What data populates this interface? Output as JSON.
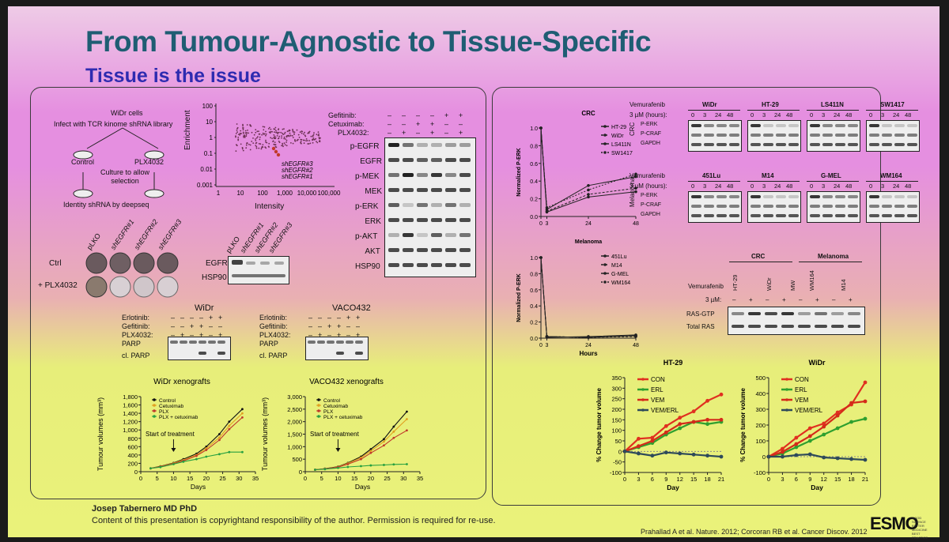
{
  "slide": {
    "title": "From Tumour-Agnostic to Tissue-Specific",
    "subtitle": "Tissue is the issue",
    "author": "Josep Tabernero MD PhD",
    "copyright": "Content of this presentation is copyrightand responsibility of the author. Permission is required for re-use.",
    "reference": "Prahallad A et al. Nature. 2012; Corcoran RB et al. Cancer Discov. 2012",
    "logo": "ESMO",
    "logo_tagline": "GOOD SCIENCE BETTER MEDICINE BEST PRACTICE"
  },
  "left": {
    "screen": {
      "cells": "WiDr cells",
      "infect": "Infect with TCR kinome shRNA library",
      "control": "Control",
      "plx": "PLX4032",
      "culture": "Culture to allow selection",
      "identify": "Identity shRNA by deepseq"
    },
    "scatter": {
      "ylabel": "Enrichment",
      "xlabel": "Intensity",
      "yticks": [
        "100",
        "10",
        "1",
        "0.1",
        "0.01",
        "0.001"
      ],
      "xticks": [
        "1",
        "10",
        "100",
        "1,000",
        "10,000",
        "100,000"
      ],
      "annotations": [
        "shEGFR#3",
        "shEGFR#2",
        "shEGFR#1"
      ]
    },
    "colony": {
      "cols": [
        "pLKO",
        "shEGFR#1",
        "shEGFR#2",
        "shEGFR#3"
      ],
      "rows": [
        "Ctrl",
        "+ PLX4032"
      ]
    },
    "egfr_blot": {
      "cols": [
        "pLKO",
        "shEGFR#1",
        "shEGFR#2",
        "shEGFR#3"
      ],
      "rows": [
        "EGFR",
        "HSP90"
      ]
    },
    "big_blot": {
      "conditions": [
        {
          "label": "Gefitinib:",
          "values": [
            "–",
            "–",
            "–",
            "–",
            "+",
            "+"
          ]
        },
        {
          "label": "Cetuximab:",
          "values": [
            "–",
            "–",
            "+",
            "+",
            "–",
            "–"
          ]
        },
        {
          "label": "PLX4032:",
          "values": [
            "–",
            "+",
            "–",
            "+",
            "–",
            "+"
          ]
        }
      ],
      "rows": [
        "p-EGFR",
        "EGFR",
        "p-MEK",
        "MEK",
        "p-ERK",
        "ERK",
        "p-AKT",
        "AKT",
        "HSP90"
      ]
    },
    "parp_widr": {
      "title": "WiDr",
      "conditions": [
        {
          "label": "Erlotinib:",
          "values": [
            "–",
            "–",
            "–",
            "–",
            "+",
            "+"
          ]
        },
        {
          "label": "Gefitinib:",
          "values": [
            "–",
            "–",
            "+",
            "+",
            "–",
            "–"
          ]
        },
        {
          "label": "PLX4032:",
          "values": [
            "–",
            "+",
            "–",
            "+",
            "–",
            "+"
          ]
        }
      ],
      "rows": [
        "PARP",
        "cl. PARP"
      ]
    },
    "parp_vaco": {
      "title": "VACO432",
      "conditions": [
        {
          "label": "Erlotinib:",
          "values": [
            "–",
            "–",
            "–",
            "–",
            "+",
            "+"
          ]
        },
        {
          "label": "Gefitinib:",
          "values": [
            "–",
            "–",
            "+",
            "+",
            "–",
            "–"
          ]
        },
        {
          "label": "PLX4032:",
          "values": [
            "–",
            "+",
            "–",
            "+",
            "–",
            "+"
          ]
        }
      ],
      "rows": [
        "PARP",
        "cl. PARP"
      ]
    },
    "start_treatment": "Start of treatment"
  },
  "right": {
    "crc_blot": {
      "drug": "Vemurafenib",
      "time_label": "3 µM (hours):",
      "times": [
        "0",
        "3",
        "24",
        "48"
      ],
      "lines": [
        "WiDr",
        "HT-29",
        "LS411N",
        "SW1417"
      ],
      "side": "CRC",
      "rows": [
        "P-ERK",
        "P-CRAF",
        "GAPDH"
      ]
    },
    "mel_blot": {
      "drug": "Vemurafenib",
      "time_label": "3 µM (hours):",
      "times": [
        "0",
        "3",
        "24",
        "48"
      ],
      "lines": [
        "451Lu",
        "M14",
        "G-MEL",
        "WM164"
      ],
      "side": "Melanoma",
      "rows": [
        "P-ERK",
        "P-CRAF",
        "GAPDH"
      ]
    },
    "ras_blot": {
      "groups": [
        "CRC",
        "Melanoma"
      ],
      "drug": "Vemurafenib",
      "cols": [
        "HT-29",
        "WiDr",
        "MW",
        "WM164",
        "M14"
      ],
      "dose_label": "3 µM:",
      "dose": [
        "–",
        "+",
        "–",
        "+",
        "–",
        "+",
        "–",
        "+"
      ],
      "rows": [
        "RAS-GTP",
        "Total RAS"
      ]
    }
  },
  "chart_data": [
    {
      "type": "line",
      "title": "WiDr xenografts",
      "xlabel": "Days",
      "ylabel": "Tumour volumes (mm³)",
      "xlim": [
        0,
        35
      ],
      "ylim": [
        0,
        1800
      ],
      "xticks": [
        0,
        5,
        10,
        15,
        20,
        25,
        30,
        35
      ],
      "yticks": [
        0,
        200,
        400,
        600,
        800,
        1000,
        1200,
        1400,
        1600,
        1800
      ],
      "ytick_labels": [
        "0",
        "200",
        "400",
        "600",
        "800",
        "1,000",
        "1,200",
        "1,400",
        "1,600",
        "1,800"
      ],
      "x": [
        3,
        6,
        10,
        13,
        17,
        20,
        24,
        27,
        31
      ],
      "series": [
        {
          "name": "Control",
          "color": "#111111",
          "values": [
            80,
            130,
            210,
            300,
            430,
            600,
            900,
            1200,
            1500
          ]
        },
        {
          "name": "Cetuximab",
          "color": "#e0a020",
          "values": [
            80,
            125,
            200,
            280,
            400,
            560,
            820,
            1100,
            1400
          ]
        },
        {
          "name": "PLX",
          "color": "#c0392b",
          "values": [
            80,
            120,
            190,
            260,
            380,
            520,
            760,
            1020,
            1300
          ]
        },
        {
          "name": "PLX + cetuximab",
          "color": "#27a040",
          "values": [
            80,
            110,
            180,
            240,
            300,
            360,
            420,
            470,
            470
          ]
        }
      ]
    },
    {
      "type": "line",
      "title": "VACO432 xenografts",
      "xlabel": "Days",
      "ylabel": "Tumour volumes (mm³)",
      "xlim": [
        0,
        35
      ],
      "ylim": [
        0,
        3000
      ],
      "xticks": [
        0,
        5,
        10,
        15,
        20,
        25,
        30,
        35
      ],
      "yticks": [
        0,
        500,
        1000,
        1500,
        2000,
        2500,
        3000
      ],
      "ytick_labels": [
        "0",
        "500",
        "1,000",
        "1,500",
        "2,000",
        "2,500",
        "3,000"
      ],
      "x": [
        3,
        6,
        10,
        13,
        17,
        20,
        24,
        27,
        31
      ],
      "series": [
        {
          "name": "Control",
          "color": "#111111",
          "values": [
            80,
            120,
            200,
            350,
            600,
            900,
            1300,
            1800,
            2400
          ]
        },
        {
          "name": "Cetuximab",
          "color": "#e0a020",
          "values": [
            80,
            115,
            190,
            330,
            560,
            830,
            1200,
            1600,
            2100
          ]
        },
        {
          "name": "PLX",
          "color": "#c0392b",
          "values": [
            80,
            110,
            180,
            300,
            500,
            750,
            1050,
            1350,
            1650
          ]
        },
        {
          "name": "PLX + cetuximab",
          "color": "#27a040",
          "values": [
            80,
            100,
            150,
            190,
            220,
            250,
            270,
            290,
            300
          ]
        }
      ]
    },
    {
      "type": "line",
      "title": "CRC",
      "xlabel": "",
      "ylabel": "Normalized P-ERK",
      "xlim": [
        0,
        48
      ],
      "ylim": [
        0,
        1.0
      ],
      "xticks": [
        0,
        3,
        24,
        48
      ],
      "yticks": [
        0,
        0.2,
        0.4,
        0.6,
        0.8,
        1.0
      ],
      "ytick_labels": [
        "0.0",
        "0.2",
        "0.4",
        "0.6",
        "0.8",
        "1.0"
      ],
      "x": [
        0,
        3,
        24,
        48
      ],
      "series": [
        {
          "name": "HT-29",
          "color": "#222222",
          "dash": "",
          "values": [
            1.0,
            0.08,
            0.35,
            0.45
          ]
        },
        {
          "name": "WiDr",
          "color": "#222222",
          "dash": "3,2",
          "values": [
            1.0,
            0.06,
            0.25,
            0.32
          ]
        },
        {
          "name": "LS411N",
          "color": "#222222",
          "dash": "",
          "values": [
            1.0,
            0.05,
            0.22,
            0.28
          ]
        },
        {
          "name": "SW1417",
          "color": "#222222",
          "dash": "2,2",
          "values": [
            1.0,
            0.1,
            0.3,
            0.48
          ]
        }
      ]
    },
    {
      "type": "line",
      "title": "",
      "xlabel": "Hours",
      "ylabel": "Normalized P-ERK",
      "xlim": [
        0,
        48
      ],
      "ylim": [
        0,
        1.0
      ],
      "xticks": [
        0,
        3,
        24,
        48
      ],
      "yticks": [
        0,
        0.2,
        0.4,
        0.6,
        0.8,
        1.0
      ],
      "ytick_labels": [
        "0.0",
        "0.2",
        "0.4",
        "0.6",
        "0.8",
        "1.0"
      ],
      "x": [
        0,
        3,
        24,
        48
      ],
      "series": [
        {
          "name": "451Lu",
          "color": "#222222",
          "dash": "",
          "values": [
            1.0,
            0.02,
            0.01,
            0.03
          ]
        },
        {
          "name": "M14",
          "color": "#222222",
          "dash": "3,2",
          "values": [
            1.0,
            0.02,
            0.01,
            0.02
          ]
        },
        {
          "name": "G-MEL",
          "color": "#222222",
          "dash": "",
          "values": [
            1.0,
            0.01,
            0.02,
            0.04
          ]
        },
        {
          "name": "WM164",
          "color": "#222222",
          "dash": "2,2",
          "values": [
            1.0,
            0.02,
            0.01,
            0.03
          ]
        }
      ]
    },
    {
      "type": "line",
      "title": "HT-29",
      "xlabel": "Day",
      "ylabel": "% Change tumor volume",
      "xlim": [
        0,
        21
      ],
      "ylim": [
        -100,
        350
      ],
      "xticks": [
        0,
        3,
        6,
        9,
        12,
        15,
        18,
        21
      ],
      "yticks": [
        -100,
        -50,
        0,
        50,
        100,
        150,
        200,
        250,
        300,
        350
      ],
      "ytick_labels": [
        "-100",
        "-50",
        "0",
        "50",
        "100",
        "150",
        "200",
        "250",
        "300",
        "350"
      ],
      "x": [
        0,
        3,
        6,
        9,
        12,
        15,
        18,
        21
      ],
      "series": [
        {
          "name": "CON",
          "color": "#e03020",
          "values": [
            0,
            60,
            65,
            120,
            160,
            190,
            240,
            270
          ]
        },
        {
          "name": "ERL",
          "color": "#2fa02f",
          "values": [
            0,
            20,
            40,
            80,
            110,
            140,
            130,
            140
          ]
        },
        {
          "name": "VEM",
          "color": "#d42a1a",
          "values": [
            0,
            25,
            50,
            90,
            130,
            140,
            150,
            150
          ]
        },
        {
          "name": "VEM/ERL",
          "color": "#2e4a5a",
          "values": [
            0,
            -10,
            -20,
            -5,
            -10,
            -15,
            -20,
            -25
          ]
        }
      ]
    },
    {
      "type": "line",
      "title": "WiDr",
      "xlabel": "Day",
      "ylabel": "% Change tumor volume",
      "xlim": [
        0,
        21
      ],
      "ylim": [
        -100,
        500
      ],
      "xticks": [
        0,
        3,
        6,
        9,
        12,
        15,
        18,
        21
      ],
      "yticks": [
        -100,
        0,
        100,
        200,
        300,
        400,
        500
      ],
      "ytick_labels": [
        "-100",
        "0",
        "100",
        "200",
        "300",
        "400",
        "500"
      ],
      "x": [
        0,
        3,
        6,
        9,
        12,
        15,
        18,
        21
      ],
      "series": [
        {
          "name": "CON",
          "color": "#e03020",
          "values": [
            0,
            50,
            120,
            180,
            210,
            280,
            330,
            470
          ]
        },
        {
          "name": "ERL",
          "color": "#2fa02f",
          "values": [
            0,
            20,
            60,
            100,
            140,
            180,
            220,
            240
          ]
        },
        {
          "name": "VEM",
          "color": "#d42a1a",
          "values": [
            0,
            30,
            80,
            130,
            190,
            260,
            340,
            350
          ]
        },
        {
          "name": "VEM/ERL",
          "color": "#2e4a5a",
          "values": [
            0,
            0,
            10,
            15,
            -5,
            -10,
            -15,
            -20
          ]
        }
      ]
    }
  ]
}
